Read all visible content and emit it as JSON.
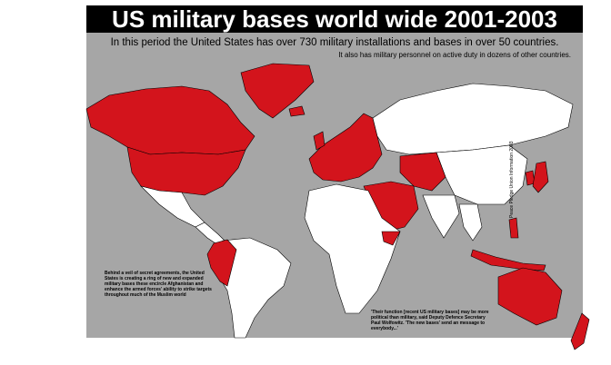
{
  "header": {
    "title": "US military bases world wide 2001-2003",
    "subtitle": "In this period the United States has over 730 military installations and bases in over 50 countries.",
    "subtitle2": "It also has military personnel on active duty in dozens of other countries."
  },
  "notes": {
    "credit": "Peace Pledge Union Information 2003",
    "left": "Behind a veil of secret agreements, the United States is creating a ring of new and expanded military bases these encircle Afghanistan and enhance the armed forces' ability to strike targets throughout much of the Muslim world",
    "quote": "'Their function [recent US military bases] may be more political than military, said Deputy Defence Secretary Paul Wolfowitz. 'The new bases' send an message to everybody...'"
  }
}
